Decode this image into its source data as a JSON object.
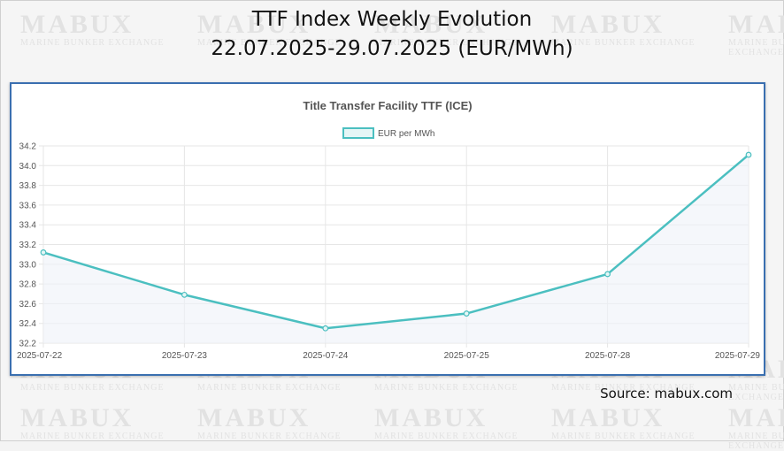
{
  "header": {
    "title_line1": "TTF Index Weekly Evolution",
    "title_line2": "22.07.2025-29.07.2025 (EUR/MWh)"
  },
  "watermark": {
    "brand": "MABUX",
    "tagline": "MARINE BUNKER EXCHANGE"
  },
  "source": "Source: mabux.com",
  "colors": {
    "line": "#4bbfc0",
    "fill": "#eef1f8",
    "panel_border": "#3a6fb0"
  },
  "chart_data": {
    "type": "line",
    "title": "Title Transfer Facility TTF (ICE)",
    "categories": [
      "2025-07-22",
      "2025-07-23",
      "2025-07-24",
      "2025-07-25",
      "2025-07-28",
      "2025-07-29"
    ],
    "series": [
      {
        "name": "EUR per MWh",
        "values": [
          33.12,
          32.69,
          32.35,
          32.5,
          32.9,
          34.11
        ]
      }
    ],
    "ylim": [
      32.2,
      34.2
    ],
    "yticks": [
      "32.2",
      "32.4",
      "32.6",
      "32.8",
      "33.0",
      "33.2",
      "33.4",
      "33.6",
      "33.8",
      "34.0",
      "34.2"
    ],
    "grid": true,
    "legend": "top-center"
  }
}
